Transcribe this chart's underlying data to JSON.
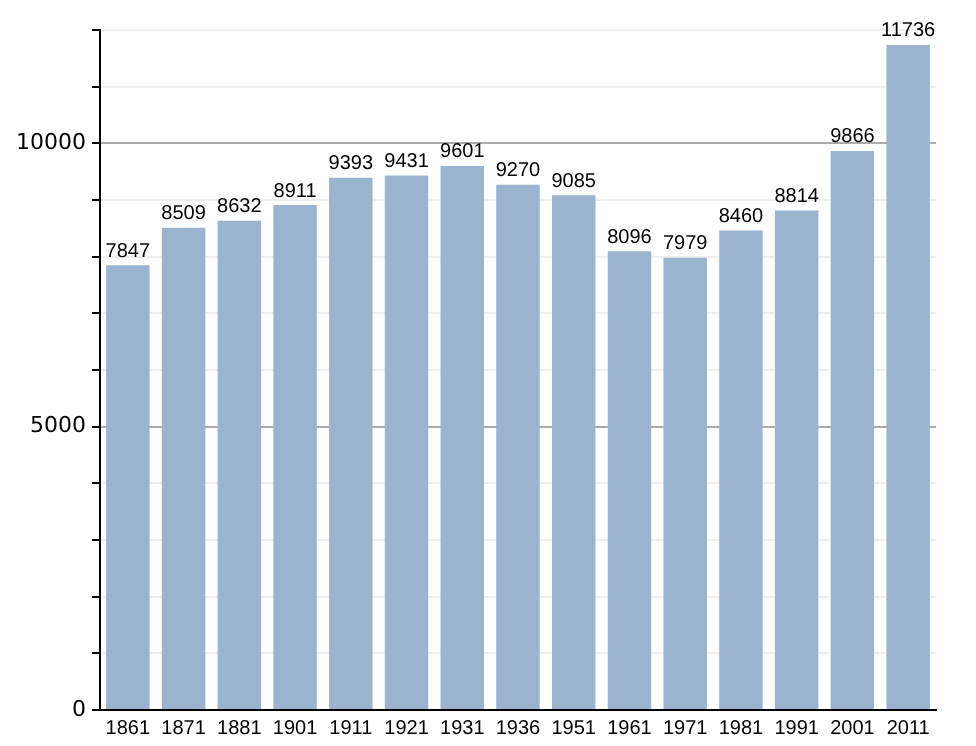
{
  "chart_data": {
    "type": "bar",
    "categories": [
      "1861",
      "1871",
      "1881",
      "1901",
      "1911",
      "1921",
      "1931",
      "1936",
      "1951",
      "1961",
      "1971",
      "1981",
      "1991",
      "2001",
      "2011"
    ],
    "values": [
      7847,
      8509,
      8632,
      8911,
      9393,
      9431,
      9601,
      9270,
      9085,
      8096,
      7979,
      8460,
      8814,
      9866,
      11736
    ],
    "color": "#9ab3cf",
    "ylim": [
      0,
      12000
    ],
    "yticks": [
      0,
      {
        "value": 1000,
        "label": null
      },
      {
        "value": 2000,
        "label": null
      },
      {
        "value": 3000,
        "label": null
      },
      {
        "value": 4000,
        "label": null
      },
      5000,
      {
        "value": 6000,
        "label": null
      },
      {
        "value": 7000,
        "label": null
      },
      {
        "value": 8000,
        "label": null
      },
      {
        "value": 9000,
        "label": null
      },
      10000,
      {
        "value": 11000,
        "label": null
      },
      {
        "value": 12000,
        "label": null
      }
    ],
    "grid": "y",
    "data_labels": true
  }
}
